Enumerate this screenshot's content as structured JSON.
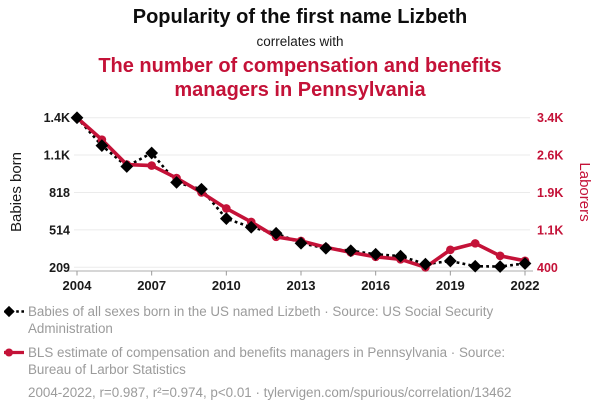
{
  "header": {
    "title": "Popularity of the first name Lizbeth",
    "connector": "correlates with",
    "title2": "The number of compensation and benefits managers in Pennsylvania"
  },
  "colors": {
    "accent_red": "#c41238",
    "series_black": "#000000",
    "legend_gray": "#9b9b9b",
    "gridline": "#ebebeb",
    "axis_line": "#c9c9c9"
  },
  "chart_data": {
    "type": "line",
    "title": "Popularity of the first name Lizbeth correlates with the number of compensation and benefits managers in Pennsylvania",
    "x": [
      2004,
      2005,
      2006,
      2007,
      2008,
      2009,
      2010,
      2011,
      2012,
      2013,
      2014,
      2015,
      2016,
      2017,
      2018,
      2019,
      2020,
      2021,
      2022
    ],
    "x_ticks": [
      2004,
      2007,
      2010,
      2013,
      2016,
      2019,
      2022
    ],
    "grid": "horizontal",
    "series": [
      {
        "name": "Babies of all sexes born in the US named Lizbeth",
        "axis": "left",
        "color": "#000000",
        "line": "dashed",
        "marker": "diamond",
        "values": [
          1427,
          1200,
          1030,
          1140,
          900,
          845,
          605,
          535,
          486,
          405,
          364,
          344,
          315,
          300,
          235,
          260,
          218,
          215,
          240
        ]
      },
      {
        "name": "BLS estimate of compensation and benefits managers in Pennsylvania",
        "axis": "right",
        "color": "#c41238",
        "line": "solid",
        "marker": "circle",
        "values": [
          3400,
          2960,
          2460,
          2440,
          2190,
          1900,
          1580,
          1310,
          1010,
          930,
          800,
          700,
          610,
          560,
          400,
          750,
          880,
          630,
          530
        ]
      }
    ],
    "left_axis": {
      "label": "Babies born",
      "range": [
        209,
        1427
      ],
      "ticks": [
        {
          "v": 1427,
          "label": "1.4K"
        },
        {
          "v": 1123,
          "label": "1.1K"
        },
        {
          "v": 818,
          "label": "818"
        },
        {
          "v": 514,
          "label": "514"
        },
        {
          "v": 209,
          "label": "209"
        }
      ]
    },
    "right_axis": {
      "label": "Laborers",
      "range": [
        400,
        3400
      ],
      "ticks": [
        {
          "v": 3400,
          "label": "3.4K"
        },
        {
          "v": 2650,
          "label": "2.6K"
        },
        {
          "v": 1900,
          "label": "1.9K"
        },
        {
          "v": 1150,
          "label": "1.1K"
        },
        {
          "v": 400,
          "label": "400"
        }
      ]
    }
  },
  "legend": {
    "series1": "Babies of all sexes born in the US named Lizbeth · Source: US Social Security Administration",
    "series2": "BLS estimate of compensation and benefits managers in Pennsylvania · Source: Bureau of Larbor Statistics",
    "footnote": "2004-2022, r=0.987, r²=0.974, p<0.01 · tylervigen.com/spurious/correlation/13462"
  }
}
